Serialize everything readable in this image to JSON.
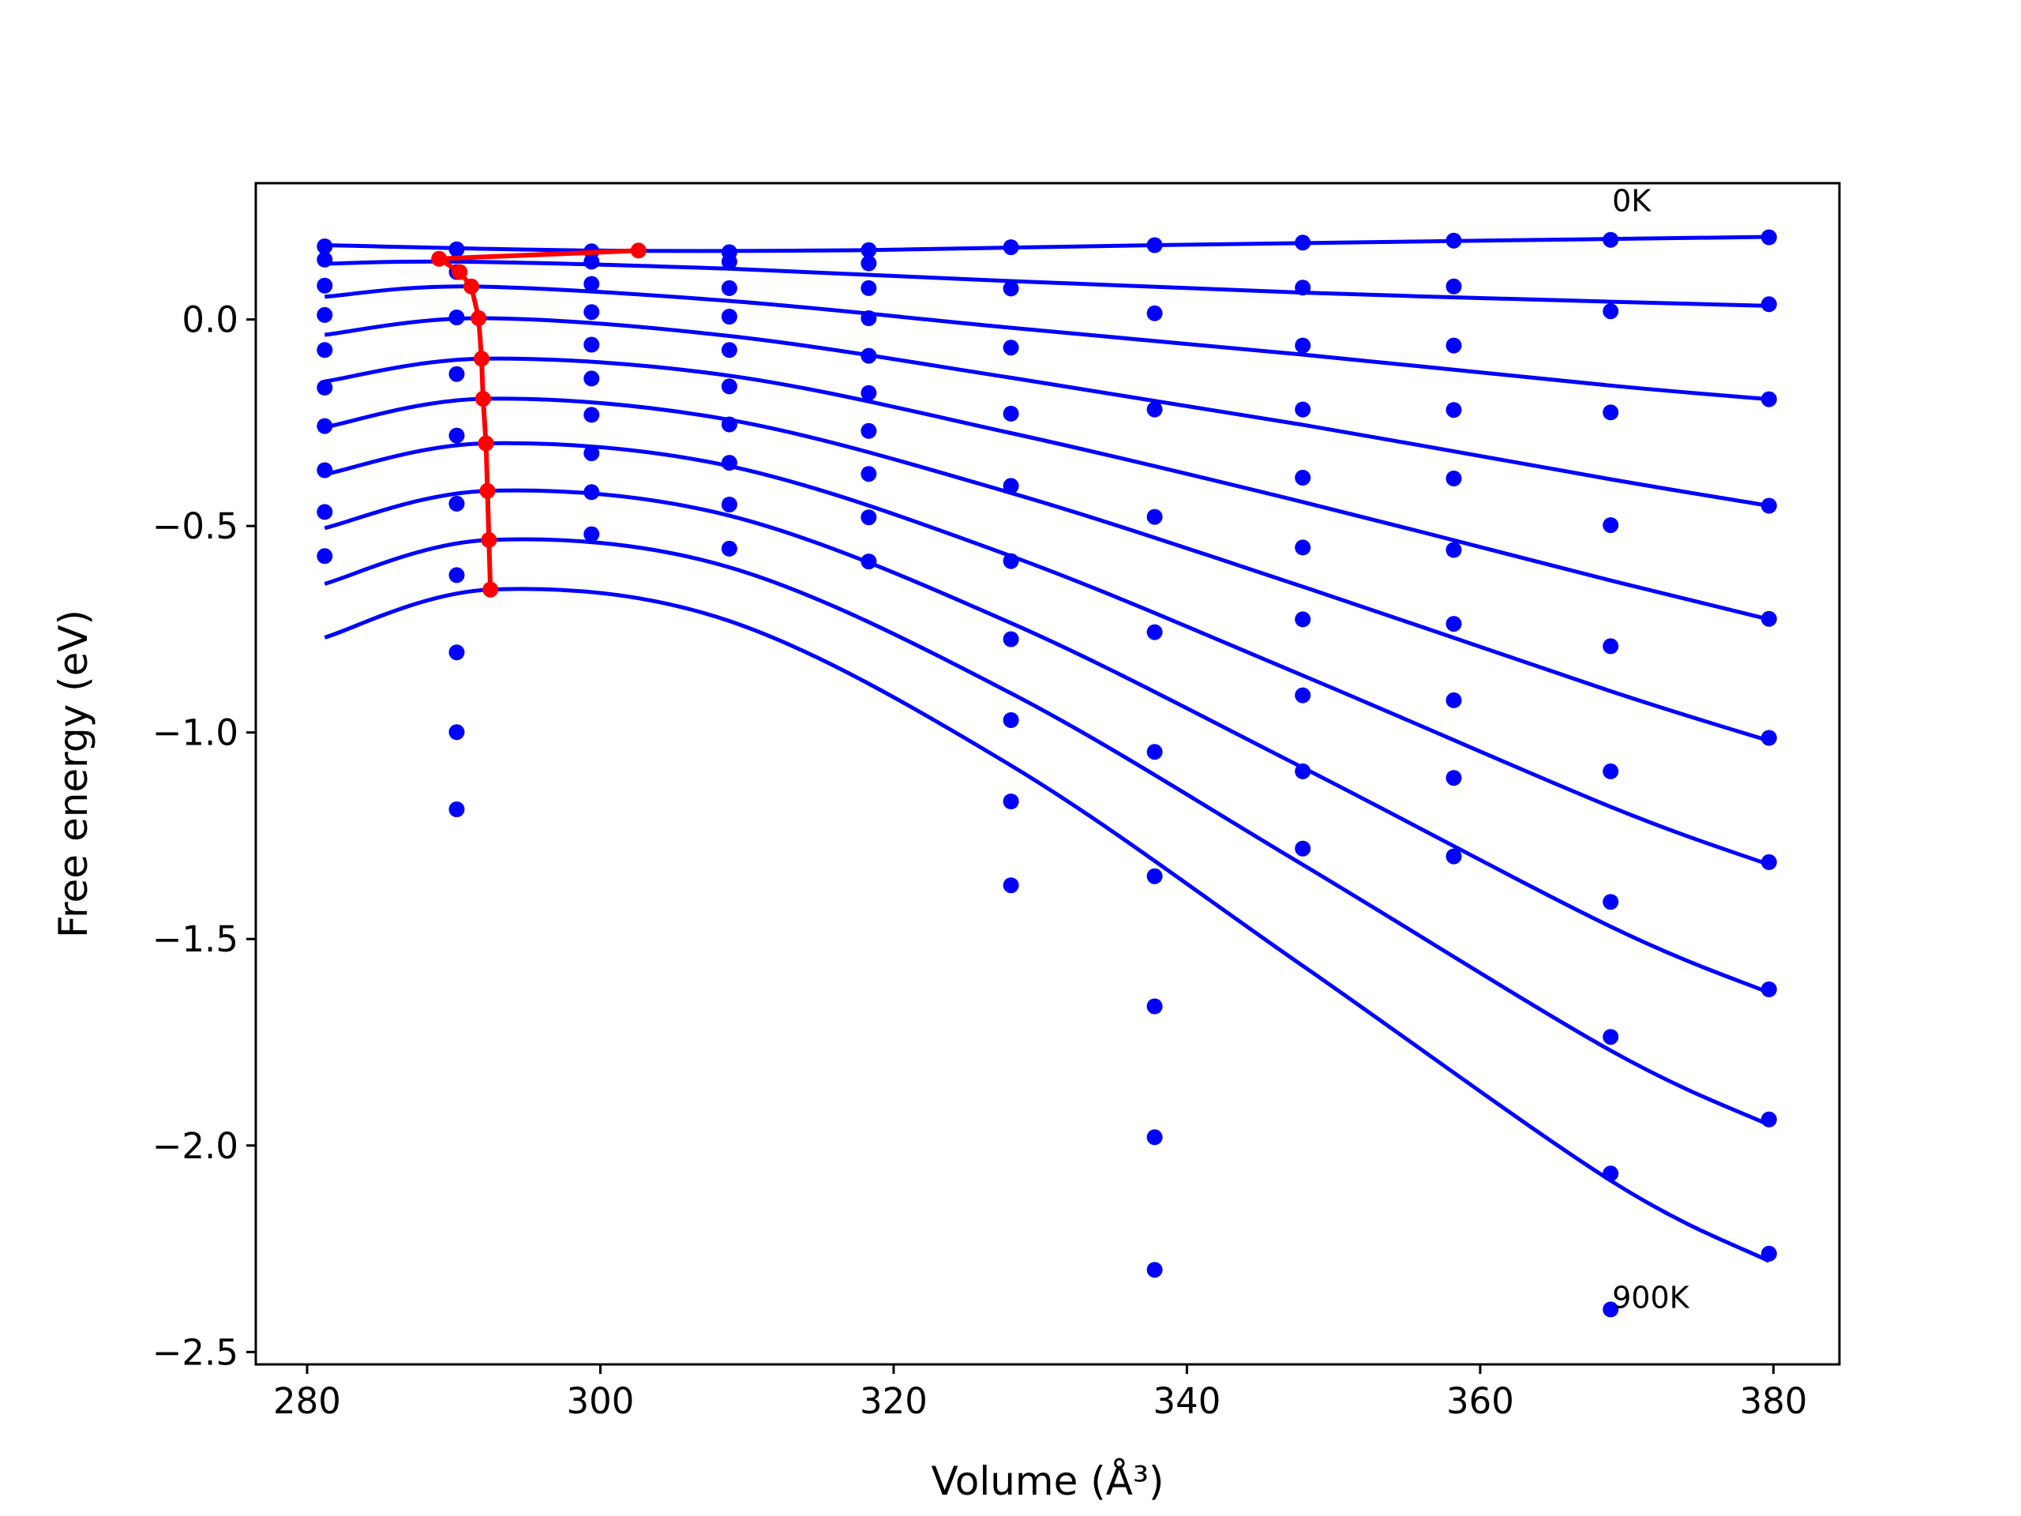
{
  "chart_data": {
    "type": "scatter",
    "xlabel": "Volume (Å³)",
    "ylabel": "Free energy (eV)",
    "xlim": [
      276.5,
      384.5
    ],
    "ylim": [
      -2.53,
      0.33
    ],
    "xticks": [
      280,
      300,
      320,
      340,
      360,
      380
    ],
    "xtick_labels": [
      "280",
      "300",
      "320",
      "340",
      "360",
      "380"
    ],
    "yticks": [
      0.0,
      -0.5,
      -1.0,
      -1.5,
      -2.0,
      -2.5
    ],
    "ytick_labels": [
      "0.0",
      "−0.5",
      "−1.0",
      "−1.5",
      "−2.0",
      "−2.5"
    ],
    "grid": false,
    "legend": "none",
    "colors": {
      "fit": "#0000ff",
      "points": "#0000ff",
      "minimum": "#ff0000"
    },
    "annotations": [
      {
        "text": "0K",
        "x": 369.0,
        "y": 0.262
      },
      {
        "text": "900K",
        "x": 369.0,
        "y": -2.393
      }
    ],
    "volumes": [
      281.2,
      290.2,
      299.4,
      308.8,
      318.3,
      328.0,
      337.8,
      347.9,
      358.2,
      368.9,
      379.7
    ],
    "points": [
      [
        0.177,
        0.17,
        0.165,
        0.163,
        0.168,
        0.175,
        0.18,
        0.186,
        0.191,
        0.193,
        0.199
      ],
      [
        0.145,
        0.115,
        0.14,
        0.14,
        0.136,
        null,
        null,
        null,
        null,
        null,
        null
      ],
      [
        0.082,
        0.005,
        0.086,
        0.076,
        0.076,
        0.075,
        0.015,
        0.077,
        0.08,
        0.02,
        0.037
      ],
      [
        0.011,
        -0.132,
        0.018,
        0.007,
        0.003,
        -0.068,
        -0.218,
        -0.063,
        -0.063,
        -0.225,
        -0.193
      ],
      [
        -0.074,
        -0.281,
        -0.061,
        -0.074,
        -0.088,
        -0.228,
        -0.478,
        -0.218,
        -0.219,
        -0.498,
        -0.451
      ],
      [
        -0.165,
        -0.446,
        -0.143,
        -0.162,
        -0.178,
        -0.403,
        -0.757,
        -0.383,
        -0.385,
        -0.791,
        -0.725
      ],
      [
        -0.258,
        -0.619,
        -0.231,
        -0.254,
        -0.27,
        -0.585,
        -1.047,
        -0.552,
        -0.558,
        -1.094,
        -1.013
      ],
      [
        -0.365,
        -0.806,
        -0.324,
        -0.347,
        -0.374,
        -0.774,
        -1.348,
        -0.726,
        -0.737,
        -1.41,
        -1.314
      ],
      [
        -0.466,
        -0.999,
        -0.418,
        -0.448,
        -0.479,
        -0.97,
        -1.663,
        -0.91,
        -0.922,
        -1.737,
        -1.622
      ],
      [
        -0.573,
        -1.186,
        -0.52,
        -0.555,
        -0.586,
        -1.167,
        -1.98,
        -1.094,
        -1.11,
        -2.068,
        -1.937
      ],
      [
        null,
        null,
        null,
        null,
        null,
        -1.37,
        -2.301,
        -1.281,
        -1.3,
        -2.397,
        -2.262
      ]
    ],
    "fit_curves": [
      {
        "x": [
          281.2,
          299.4,
          318.3,
          337.8,
          358.2,
          379.7
        ],
        "y": [
          0.18,
          0.167,
          0.168,
          0.18,
          0.19,
          0.2
        ]
      },
      {
        "x": [
          281.2,
          290.2,
          308.8,
          328.0,
          347.9,
          368.9,
          379.7
        ],
        "y": [
          0.135,
          0.14,
          0.123,
          0.093,
          0.065,
          0.043,
          0.033
        ]
      },
      {
        "x": [
          281.2,
          291.0,
          308.8,
          328.0,
          347.9,
          368.9,
          379.7
        ],
        "y": [
          0.055,
          0.08,
          0.045,
          -0.02,
          -0.085,
          -0.16,
          -0.193
        ]
      },
      {
        "x": [
          281.2,
          291.8,
          308.8,
          328.0,
          347.9,
          368.9,
          379.7
        ],
        "y": [
          -0.037,
          0.003,
          -0.04,
          -0.141,
          -0.255,
          -0.387,
          -0.451
        ]
      },
      {
        "x": [
          281.2,
          292.0,
          308.8,
          328.0,
          347.9,
          368.9,
          379.7
        ],
        "y": [
          -0.15,
          -0.095,
          -0.136,
          -0.275,
          -0.442,
          -0.632,
          -0.726
        ]
      },
      {
        "x": [
          281.2,
          292.1,
          308.8,
          328.0,
          347.9,
          368.9,
          379.7
        ],
        "y": [
          -0.261,
          -0.192,
          -0.243,
          -0.42,
          -0.647,
          -0.9,
          -1.02
        ]
      },
      {
        "x": [
          281.2,
          292.2,
          308.8,
          328.0,
          347.9,
          368.9,
          379.7
        ],
        "y": [
          -0.375,
          -0.3,
          -0.355,
          -0.573,
          -0.862,
          -1.18,
          -1.32
        ]
      },
      {
        "x": [
          281.2,
          292.3,
          308.8,
          328.0,
          347.9,
          368.9,
          379.7
        ],
        "y": [
          -0.505,
          -0.415,
          -0.475,
          -0.735,
          -1.085,
          -1.47,
          -1.63
        ]
      },
      {
        "x": [
          281.2,
          292.4,
          308.8,
          328.0,
          347.9,
          368.9,
          379.7
        ],
        "y": [
          -0.64,
          -0.534,
          -0.6,
          -0.905,
          -1.32,
          -1.77,
          -1.95
        ]
      },
      {
        "x": [
          281.2,
          292.5,
          308.8,
          328.0,
          347.9,
          368.9,
          379.7
        ],
        "y": [
          -0.77,
          -0.654,
          -0.73,
          -1.08,
          -1.565,
          -2.085,
          -2.28
        ]
      }
    ],
    "minimum_path": {
      "x": [
        302.6,
        289.0,
        290.4,
        291.2,
        291.7,
        291.9,
        292.0,
        292.2,
        292.3,
        292.4,
        292.5
      ],
      "y": [
        0.167,
        0.147,
        0.115,
        0.08,
        0.003,
        -0.095,
        -0.192,
        -0.3,
        -0.415,
        -0.534,
        -0.654
      ]
    }
  }
}
